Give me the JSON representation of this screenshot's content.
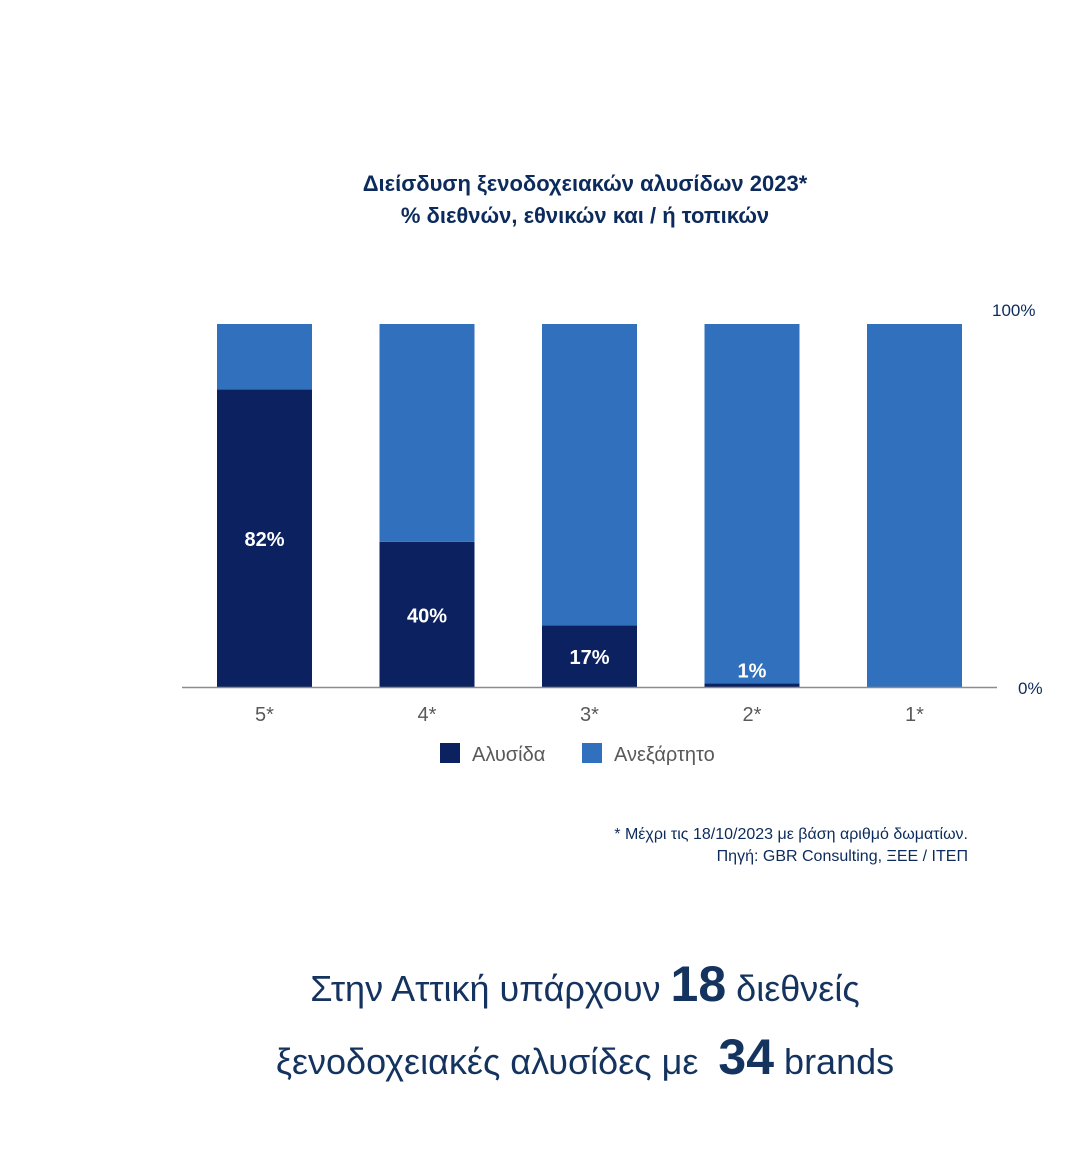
{
  "chart_data": {
    "type": "bar",
    "stacked": true,
    "title": "Διείσδυση ξενοδοχειακών αλυσίδων 2023*",
    "subtitle": "% διεθνών, εθνικών και / ή τοπικών",
    "categories": [
      "5*",
      "4*",
      "3*",
      "2*",
      "1*"
    ],
    "series": [
      {
        "name": "Αλυσίδα",
        "values": [
          82,
          40,
          17,
          1,
          0
        ],
        "color": "#0b2160",
        "labels": [
          "82%",
          "40%",
          "17%",
          "1%",
          ""
        ]
      },
      {
        "name": "Ανεξάρτητο",
        "values": [
          18,
          60,
          83,
          99,
          100
        ],
        "color": "#3170bc"
      }
    ],
    "ylim": [
      0,
      100
    ],
    "y_tick_labels": [
      "0%",
      "100%"
    ],
    "y_axis_position": "right",
    "grid": false,
    "legend_position": "bottom"
  },
  "notes": {
    "line1": "* Μέχρι τις 18/10/2023 με βάση αριθμό δωματίων.",
    "line2": "Πηγή: GBR Consulting, ΞΕΕ / ΙΤΕΠ"
  },
  "headline": {
    "line1_pre": "Στην Αττική υπάρχουν",
    "line1_num": "18",
    "line1_post": "διεθνείς",
    "line2_pre": "ξενοδοχειακές αλυσίδες με",
    "line2_num": "34",
    "line2_post": "brands"
  }
}
